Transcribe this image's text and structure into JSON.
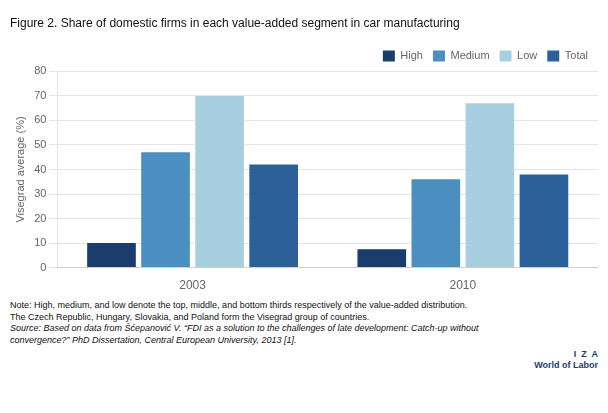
{
  "chart_data": {
    "type": "bar",
    "title": "Figure 2. Share of domestic firms in each value-added segment in car manufacturing",
    "ylabel": "Visegrad average (%)",
    "categories": [
      "2003",
      "2010"
    ],
    "series": [
      {
        "name": "High",
        "color": "#1b3d6e",
        "values": [
          10,
          7.5
        ]
      },
      {
        "name": "Medium",
        "color": "#4a8fc0",
        "values": [
          47,
          36
        ]
      },
      {
        "name": "Low",
        "color": "#a8cfe0",
        "values": [
          70,
          67
        ]
      },
      {
        "name": "Total",
        "color": "#2b6098",
        "values": [
          42,
          38
        ]
      }
    ],
    "ylim": [
      0,
      80
    ],
    "yticks": [
      0,
      10,
      20,
      30,
      40,
      50,
      60,
      70,
      80
    ],
    "grid": true,
    "legend": "upper right",
    "annotations": [
      "Note: High, medium, and low denote the top, middle, and bottom thirds respectively of the value-added distribution.",
      "The Czech Republic, Hungary, Slovakia, and Poland form the Visegrad group of countries.",
      "Source: Based on data from Šćepanović V. “FDI as a solution to the challenges of late development: Catch-up without",
      "convergence?” PhD Dissertation, Central European University, 2013 [1].",
      "I  Z  A",
      "World of Labor"
    ]
  }
}
